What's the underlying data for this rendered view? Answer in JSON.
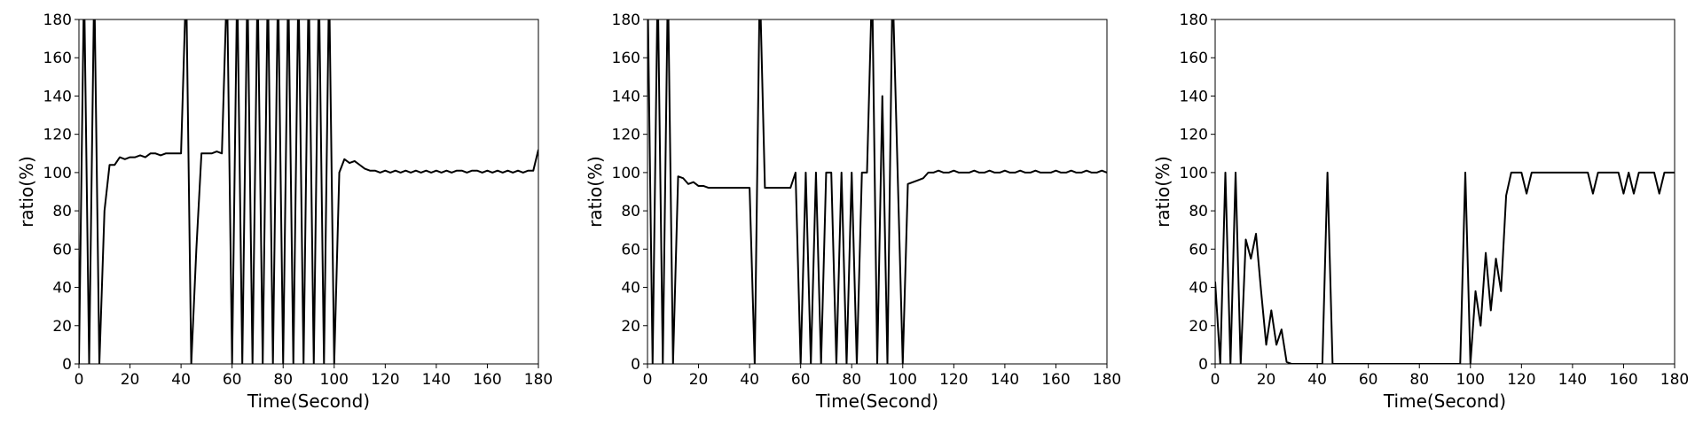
{
  "chart_data": [
    {
      "type": "line",
      "xlabel": "Time(Second)",
      "ylabel": "ratio(%)",
      "x": [
        0,
        2,
        4,
        6,
        8,
        10,
        12,
        14,
        16,
        18,
        20,
        22,
        24,
        26,
        28,
        30,
        32,
        34,
        36,
        38,
        40,
        42,
        44,
        46,
        48,
        50,
        52,
        54,
        56,
        58,
        60,
        62,
        64,
        66,
        68,
        70,
        72,
        74,
        76,
        78,
        80,
        82,
        84,
        86,
        88,
        90,
        92,
        94,
        96,
        98,
        100,
        102,
        104,
        106,
        108,
        110,
        112,
        114,
        116,
        118,
        120,
        122,
        124,
        126,
        128,
        130,
        132,
        134,
        136,
        138,
        140,
        142,
        144,
        146,
        148,
        150,
        152,
        154,
        156,
        158,
        160,
        162,
        164,
        166,
        168,
        170,
        172,
        174,
        176,
        178,
        180
      ],
      "series": [
        {
          "color": "#000000",
          "values": [
            0,
            200,
            0,
            200,
            0,
            80,
            104,
            104,
            108,
            107,
            108,
            108,
            109,
            108,
            110,
            110,
            109,
            110,
            110,
            110,
            110,
            200,
            0,
            60,
            110,
            110,
            110,
            111,
            110,
            200,
            0,
            200,
            0,
            200,
            0,
            200,
            0,
            200,
            0,
            200,
            0,
            200,
            0,
            200,
            0,
            200,
            0,
            200,
            0,
            200,
            0,
            100,
            107,
            105,
            106,
            104,
            102,
            101,
            101,
            100,
            101,
            100,
            101,
            100,
            101,
            100,
            101,
            100,
            101,
            100,
            101,
            100,
            101,
            100,
            101,
            101,
            100,
            101,
            101,
            100,
            101,
            100,
            101,
            100,
            101,
            100,
            101,
            100,
            101,
            101,
            112
          ]
        }
      ],
      "xlim": [
        0,
        180
      ],
      "ylim": [
        0,
        180
      ],
      "xticks": [
        0,
        20,
        40,
        60,
        80,
        100,
        120,
        140,
        160,
        180
      ],
      "yticks": [
        0,
        20,
        40,
        60,
        80,
        100,
        120,
        140,
        160,
        180
      ]
    },
    {
      "type": "line",
      "xlabel": "Time(Second)",
      "ylabel": "ratio(%)",
      "x": [
        0,
        2,
        4,
        6,
        8,
        10,
        12,
        14,
        16,
        18,
        20,
        22,
        24,
        26,
        28,
        30,
        32,
        34,
        36,
        38,
        40,
        42,
        44,
        46,
        48,
        50,
        52,
        54,
        56,
        58,
        60,
        62,
        64,
        66,
        68,
        70,
        72,
        74,
        76,
        78,
        80,
        82,
        84,
        86,
        88,
        90,
        92,
        94,
        96,
        98,
        100,
        102,
        104,
        106,
        108,
        110,
        112,
        114,
        116,
        118,
        120,
        122,
        124,
        126,
        128,
        130,
        132,
        134,
        136,
        138,
        140,
        142,
        144,
        146,
        148,
        150,
        152,
        154,
        156,
        158,
        160,
        162,
        164,
        166,
        168,
        170,
        172,
        174,
        176,
        178,
        180
      ],
      "series": [
        {
          "color": "#000000",
          "values": [
            200,
            0,
            200,
            0,
            200,
            0,
            98,
            97,
            94,
            95,
            93,
            93,
            92,
            92,
            92,
            92,
            92,
            92,
            92,
            92,
            92,
            0,
            200,
            92,
            92,
            92,
            92,
            92,
            92,
            100,
            0,
            100,
            0,
            100,
            0,
            100,
            100,
            0,
            100,
            0,
            100,
            0,
            100,
            100,
            200,
            0,
            140,
            0,
            200,
            100,
            0,
            94,
            95,
            96,
            97,
            100,
            100,
            101,
            100,
            100,
            101,
            100,
            100,
            100,
            101,
            100,
            100,
            101,
            100,
            100,
            101,
            100,
            100,
            101,
            100,
            100,
            101,
            100,
            100,
            100,
            101,
            100,
            100,
            101,
            100,
            100,
            101,
            100,
            100,
            101,
            100
          ]
        }
      ],
      "xlim": [
        0,
        180
      ],
      "ylim": [
        0,
        180
      ],
      "xticks": [
        0,
        20,
        40,
        60,
        80,
        100,
        120,
        140,
        160,
        180
      ],
      "yticks": [
        0,
        20,
        40,
        60,
        80,
        100,
        120,
        140,
        160,
        180
      ]
    },
    {
      "type": "line",
      "xlabel": "Time(Second)",
      "ylabel": "ratio(%)",
      "x": [
        0,
        2,
        4,
        6,
        8,
        10,
        12,
        14,
        16,
        18,
        20,
        22,
        24,
        26,
        28,
        30,
        32,
        34,
        36,
        38,
        40,
        42,
        44,
        46,
        48,
        50,
        52,
        54,
        56,
        58,
        60,
        62,
        64,
        66,
        68,
        70,
        72,
        74,
        76,
        78,
        80,
        82,
        84,
        86,
        88,
        90,
        92,
        94,
        96,
        98,
        100,
        102,
        104,
        106,
        108,
        110,
        112,
        114,
        116,
        118,
        120,
        122,
        124,
        126,
        128,
        130,
        132,
        134,
        136,
        138,
        140,
        142,
        144,
        146,
        148,
        150,
        152,
        154,
        156,
        158,
        160,
        162,
        164,
        166,
        168,
        170,
        172,
        174,
        176,
        178,
        180
      ],
      "series": [
        {
          "color": "#000000",
          "values": [
            43,
            0,
            100,
            0,
            100,
            0,
            65,
            55,
            68,
            38,
            10,
            28,
            10,
            18,
            1,
            0,
            0,
            0,
            0,
            0,
            0,
            0,
            100,
            0,
            0,
            0,
            0,
            0,
            0,
            0,
            0,
            0,
            0,
            0,
            0,
            0,
            0,
            0,
            0,
            0,
            0,
            0,
            0,
            0,
            0,
            0,
            0,
            0,
            0,
            100,
            0,
            38,
            20,
            58,
            28,
            55,
            38,
            88,
            100,
            100,
            100,
            89,
            100,
            100,
            100,
            100,
            100,
            100,
            100,
            100,
            100,
            100,
            100,
            100,
            89,
            100,
            100,
            100,
            100,
            100,
            89,
            100,
            89,
            100,
            100,
            100,
            100,
            89,
            100,
            100,
            100
          ]
        }
      ],
      "xlim": [
        0,
        180
      ],
      "ylim": [
        0,
        180
      ],
      "xticks": [
        0,
        20,
        40,
        60,
        80,
        100,
        120,
        140,
        160,
        180
      ],
      "yticks": [
        0,
        20,
        40,
        60,
        80,
        100,
        120,
        140,
        160,
        180
      ]
    }
  ]
}
